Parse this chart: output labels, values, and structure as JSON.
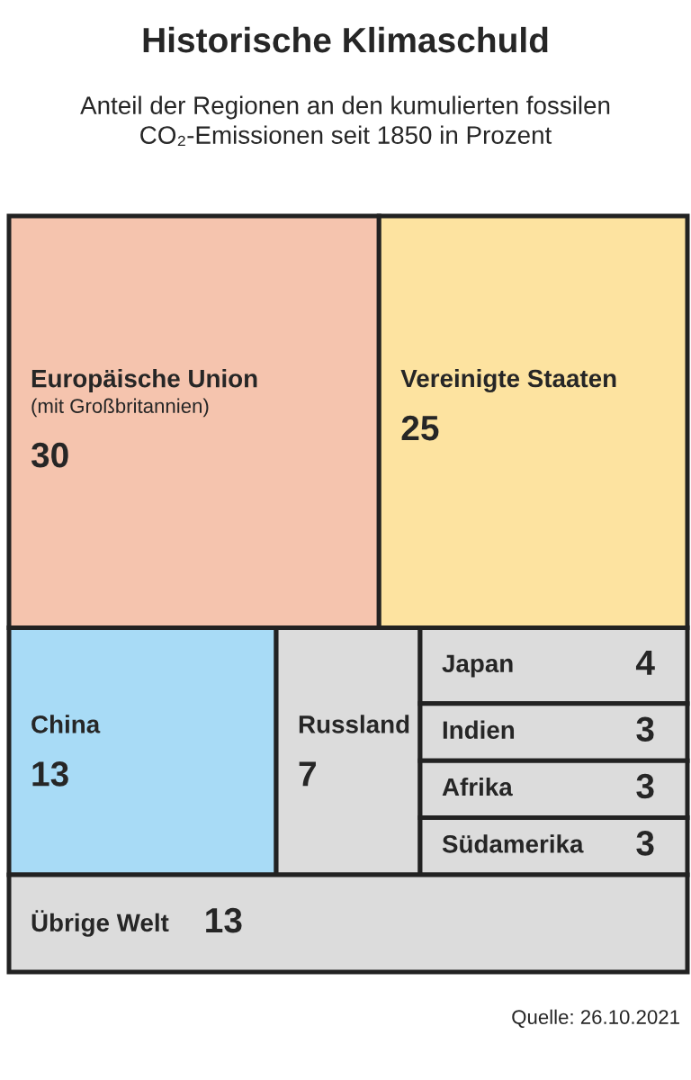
{
  "chart_data": {
    "type": "other",
    "title": "Historische Klimaschuld",
    "subtitle": "Anteil der Regionen an den kumulierten fossilen\nCO₂-Emissionen seit 1850 in Prozent",
    "categories": [
      "Europäische Union\n(mit Großbritannien)",
      "Vereinigte Staaten",
      "China",
      "Russland",
      "Japan",
      "Indien",
      "Afrika",
      "Südamerika",
      "Übrige Welt"
    ],
    "values": [
      30,
      25,
      13,
      7,
      4,
      3,
      3,
      3,
      13
    ],
    "colors": [
      "#f5c4ae",
      "#fde3a0",
      "#a8dbf6",
      "#dcdcdc",
      "#dcdcdc",
      "#dcdcdc",
      "#dcdcdc",
      "#dcdcdc",
      "#dcdcdc"
    ],
    "data_labels": true,
    "annotations": [
      "Quelle: 26.10.2021"
    ]
  }
}
